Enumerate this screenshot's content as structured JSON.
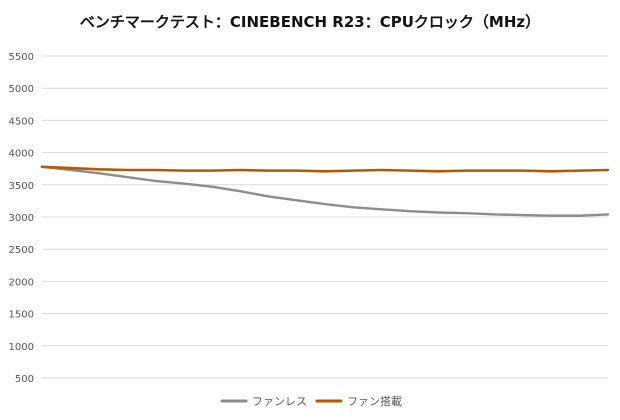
{
  "chart_data": {
    "type": "line",
    "title": "ベンチマークテスト：CINEBENCH R23：CPUクロック（MHz）",
    "xlabel": "",
    "ylabel": "",
    "ylim": [
      500,
      5500
    ],
    "yticks": [
      500,
      1000,
      1500,
      2000,
      2500,
      3000,
      3500,
      4000,
      4500,
      5000,
      5500
    ],
    "grid": true,
    "legend": "bottom",
    "x": [
      0,
      5,
      10,
      15,
      20,
      25,
      30,
      35,
      40,
      45,
      50,
      55,
      60,
      65,
      70,
      75,
      80,
      85,
      90,
      95,
      100
    ],
    "series": [
      {
        "name": "ファンレス",
        "color": "#8c8c8c",
        "values": [
          3780,
          3730,
          3680,
          3620,
          3560,
          3520,
          3470,
          3400,
          3320,
          3260,
          3200,
          3150,
          3120,
          3090,
          3070,
          3060,
          3040,
          3030,
          3020,
          3020,
          3040
        ]
      },
      {
        "name": "ファン搭載",
        "color": "#b35a00",
        "values": [
          3780,
          3760,
          3740,
          3730,
          3730,
          3720,
          3720,
          3730,
          3720,
          3720,
          3710,
          3720,
          3730,
          3720,
          3710,
          3720,
          3720,
          3720,
          3710,
          3720,
          3730
        ]
      }
    ]
  }
}
